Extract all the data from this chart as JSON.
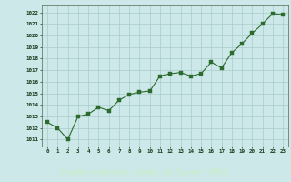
{
  "x": [
    0,
    1,
    2,
    3,
    4,
    5,
    6,
    7,
    8,
    9,
    10,
    11,
    12,
    13,
    14,
    15,
    16,
    17,
    18,
    19,
    20,
    21,
    22,
    23
  ],
  "y": [
    1012.5,
    1012.0,
    1011.0,
    1013.0,
    1013.2,
    1013.8,
    1013.5,
    1014.4,
    1014.9,
    1015.1,
    1015.2,
    1016.5,
    1016.7,
    1016.8,
    1016.5,
    1016.7,
    1017.7,
    1017.2,
    1018.5,
    1019.3,
    1020.2,
    1021.0,
    1021.9,
    1021.8
  ],
  "line_color": "#2d6a2d",
  "marker_color": "#2d6a2d",
  "bg_color": "#cce8e8",
  "plot_bg": "#cce8e8",
  "grid_color": "#aacccc",
  "label_bg": "#3a7a3a",
  "label_fg": "#cce8c0",
  "title": "Graphe pression niveau de la mer (hPa)",
  "ylabel_vals": [
    1011,
    1012,
    1013,
    1014,
    1015,
    1016,
    1017,
    1018,
    1019,
    1020,
    1021,
    1022
  ],
  "ylim": [
    1010.4,
    1022.6
  ],
  "xlim": [
    -0.5,
    23.5
  ],
  "xtick_labels": [
    "0",
    "1",
    "2",
    "3",
    "4",
    "5",
    "6",
    "7",
    "8",
    "9",
    "10",
    "11",
    "12",
    "13",
    "14",
    "15",
    "16",
    "17",
    "18",
    "19",
    "20",
    "21",
    "22",
    "23"
  ]
}
